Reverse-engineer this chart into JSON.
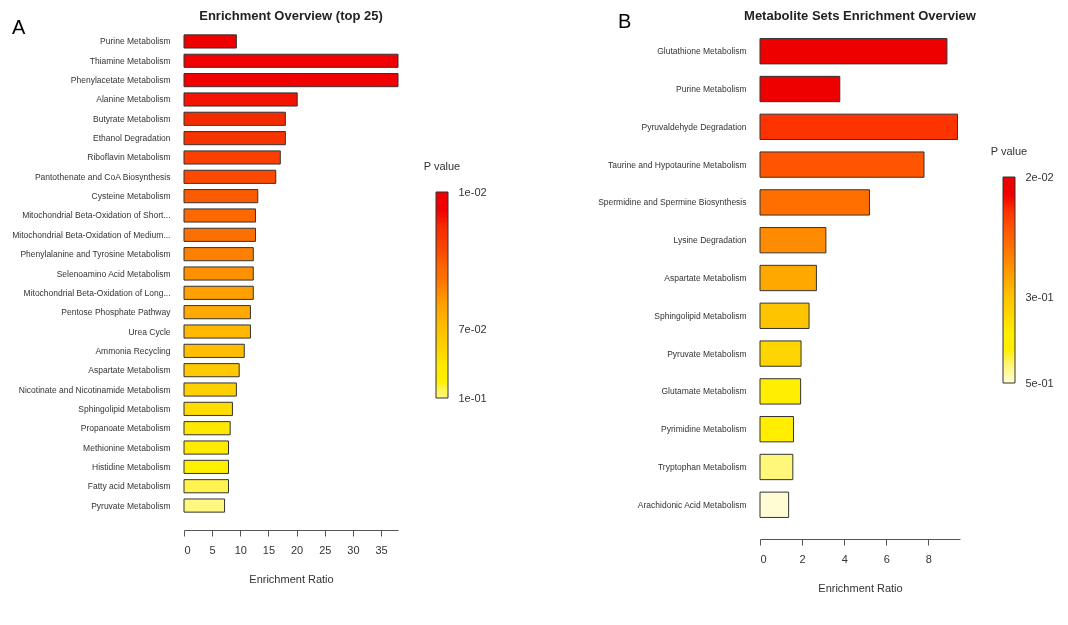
{
  "chart_data": [
    {
      "type": "bar",
      "orientation": "horizontal",
      "title": "Enrichment Overview (top 25)",
      "xlabel": "Enrichment Ratio",
      "annotations": [
        "A"
      ],
      "categories": [
        "Purine Metabolism",
        "Thiamine Metabolism",
        "Phenylacetate Metabolism",
        "Alanine Metabolism",
        "Butyrate Metabolism",
        "Ethanol Degradation",
        "Riboflavin Metabolism",
        "Pantothenate and CoA Biosynthesis",
        "Cysteine Metabolism",
        "Mitochondrial Beta-Oxidation of Short...",
        "Mitochondrial Beta-Oxidation of Medium...",
        "Phenylalanine and Tyrosine Metabolism",
        "Selenoamino Acid Metabolism",
        "Mitochondrial Beta-Oxidation of Long...",
        "Pentose Phosphate Pathway",
        "Urea Cycle",
        "Ammonia Recycling",
        "Aspartate Metabolism",
        "Nicotinate and Nicotinamide Metabolism",
        "Sphingolipid Metabolism",
        "Propanoate Metabolism",
        "Methionine Metabolism",
        "Histidine Metabolism",
        "Fatty acid Metabolism",
        "Pyruvate Metabolism"
      ],
      "values": [
        9.3,
        38,
        38,
        20.1,
        18,
        18,
        17.1,
        16.3,
        13.1,
        12.7,
        12.7,
        12.3,
        12.3,
        12.3,
        11.8,
        11.8,
        10.7,
        9.8,
        9.3,
        8.6,
        8.2,
        7.9,
        7.9,
        7.9,
        7.2
      ],
      "colors": [
        "#ee0000",
        "#f00000",
        "#f00000",
        "#f21300",
        "#f52b00",
        "#f73300",
        "#f94000",
        "#fa4a00",
        "#fc5c00",
        "#fd6800",
        "#fd7000",
        "#fe8000",
        "#ff9000",
        "#ffa000",
        "#ffaa00",
        "#ffb700",
        "#ffbf00",
        "#ffc800",
        "#ffd000",
        "#ffdb00",
        "#ffe800",
        "#ffeb00",
        "#fff000",
        "#fff44f",
        "#fff77f"
      ],
      "xlim": [
        0,
        38
      ],
      "xticks": [
        0,
        5,
        10,
        15,
        20,
        25,
        30,
        35
      ],
      "clabel": "P value",
      "clim": [
        0.1,
        0.01
      ],
      "cticks": [
        {
          "value": 0.01,
          "label": "1e-02"
        },
        {
          "value": 0.07,
          "label": "7e-02"
        },
        {
          "value": 0.1,
          "label": "1e-01"
        }
      ]
    },
    {
      "type": "bar",
      "orientation": "horizontal",
      "title": "Metabolite Sets Enrichment Overview",
      "xlabel": "Enrichment Ratio",
      "annotations": [
        "B"
      ],
      "categories": [
        "Glutathione Metabolism",
        "Purine Metabolism",
        "Pyruvaldehyde Degradation",
        "Taurine and Hypotaurine Metabolism",
        "Spermidine and Spermine Biosynthesis",
        "Lysine Degradation",
        "Aspartate Metabolism",
        "Sphingolipid Metabolism",
        "Pyruvate Metabolism",
        "Glutamate Metabolism",
        "Pyrimidine Metabolism",
        "Tryptophan Metabolism",
        "Arachidonic Acid Metabolism"
      ],
      "values": [
        8.88,
        3.79,
        9.38,
        7.79,
        5.2,
        3.13,
        2.68,
        2.33,
        1.95,
        1.93,
        1.59,
        1.56,
        1.36
      ],
      "colors": [
        "#ee0000",
        "#ee0000",
        "#ff3300",
        "#ff5500",
        "#ff6f00",
        "#ff8c00",
        "#ffa800",
        "#ffc400",
        "#ffd500",
        "#ffee00",
        "#ffee00",
        "#fff77a",
        "#fffcd4"
      ],
      "xlim": [
        0,
        9.5
      ],
      "xticks": [
        0,
        2,
        4,
        6,
        8
      ],
      "clabel": "P value",
      "clim": [
        0.5,
        0.02
      ],
      "cticks": [
        {
          "value": 0.02,
          "label": "2e-02"
        },
        {
          "value": 0.3,
          "label": "3e-01"
        },
        {
          "value": 0.5,
          "label": "5e-01"
        }
      ]
    }
  ]
}
